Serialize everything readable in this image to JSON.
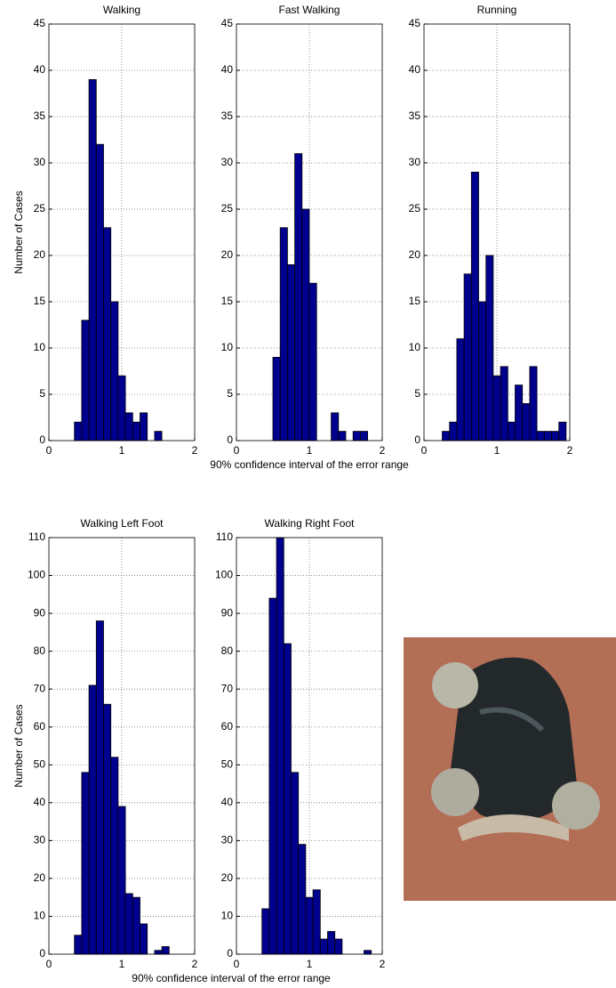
{
  "chart_data": [
    {
      "type": "histogram",
      "title": "Walking",
      "ylabel": "Number of Cases",
      "color": "#00008f",
      "grid": true,
      "bins": [
        0.35,
        0.45,
        0.55,
        0.65,
        0.75,
        0.85,
        0.95,
        1.05,
        1.15,
        1.25,
        1.35,
        1.45,
        1.55
      ],
      "counts": [
        2,
        13,
        39,
        32,
        23,
        15,
        7,
        3,
        2,
        3,
        0,
        1
      ],
      "xlim": [
        0,
        2
      ],
      "xticks": [
        0,
        1,
        2
      ],
      "ylim": [
        0,
        45
      ],
      "yticks": [
        0,
        5,
        10,
        15,
        20,
        25,
        30,
        35,
        40,
        45
      ]
    },
    {
      "type": "histogram",
      "title": "Fast Walking",
      "xlabel": "90% confidence interval of the error range",
      "color": "#00008f",
      "grid": true,
      "bins": [
        0.5,
        0.6,
        0.7,
        0.8,
        0.9,
        1.0,
        1.1,
        1.2,
        1.3,
        1.4,
        1.5,
        1.6,
        1.7,
        1.8
      ],
      "counts": [
        9,
        23,
        19,
        31,
        25,
        17,
        0,
        0,
        3,
        1,
        0,
        1,
        1
      ],
      "xlim": [
        0,
        2
      ],
      "xticks": [
        0,
        1,
        2
      ],
      "ylim": [
        0,
        45
      ],
      "yticks": [
        0,
        5,
        10,
        15,
        20,
        25,
        30,
        35,
        40,
        45
      ]
    },
    {
      "type": "histogram",
      "title": "Running",
      "color": "#00008f",
      "grid": true,
      "bins": [
        0.25,
        0.35,
        0.45,
        0.55,
        0.65,
        0.75,
        0.85,
        0.95,
        1.05,
        1.15,
        1.25,
        1.35,
        1.45,
        1.55,
        1.65,
        1.75,
        1.85,
        1.95
      ],
      "counts": [
        1,
        2,
        11,
        18,
        29,
        15,
        20,
        7,
        8,
        2,
        6,
        4,
        8,
        1,
        1,
        1,
        2
      ],
      "xlim": [
        0,
        2
      ],
      "xticks": [
        0,
        1,
        2
      ],
      "ylim": [
        0,
        45
      ],
      "yticks": [
        0,
        5,
        10,
        15,
        20,
        25,
        30,
        35,
        40,
        45
      ]
    },
    {
      "type": "histogram",
      "title": "Walking Left Foot",
      "ylabel": "Number of Cases",
      "color": "#00008f",
      "grid": true,
      "bins": [
        0.35,
        0.45,
        0.55,
        0.65,
        0.75,
        0.85,
        0.95,
        1.05,
        1.15,
        1.25,
        1.35,
        1.45,
        1.55,
        1.65
      ],
      "counts": [
        5,
        48,
        71,
        88,
        66,
        52,
        39,
        16,
        15,
        8,
        0,
        1,
        2
      ],
      "xlim": [
        0,
        2
      ],
      "xticks": [
        0,
        1,
        2
      ],
      "ylim": [
        0,
        110
      ],
      "yticks": [
        0,
        10,
        20,
        30,
        40,
        50,
        60,
        70,
        80,
        90,
        100,
        110
      ]
    },
    {
      "type": "histogram",
      "title": "Walking Right Foot",
      "xlabel": "90% confidence interval of the error range",
      "color": "#00008f",
      "grid": true,
      "bins": [
        0.35,
        0.45,
        0.55,
        0.65,
        0.75,
        0.85,
        0.95,
        1.05,
        1.15,
        1.25,
        1.35,
        1.45,
        1.55,
        1.65,
        1.75,
        1.85
      ],
      "counts": [
        12,
        94,
        110,
        82,
        48,
        29,
        15,
        17,
        4,
        6,
        4,
        0,
        0,
        0,
        1
      ],
      "xlim": [
        0,
        2
      ],
      "xticks": [
        0,
        1,
        2
      ],
      "ylim": [
        0,
        110
      ],
      "yticks": [
        0,
        10,
        20,
        30,
        40,
        50,
        60,
        70,
        80,
        90,
        100,
        110
      ]
    }
  ]
}
